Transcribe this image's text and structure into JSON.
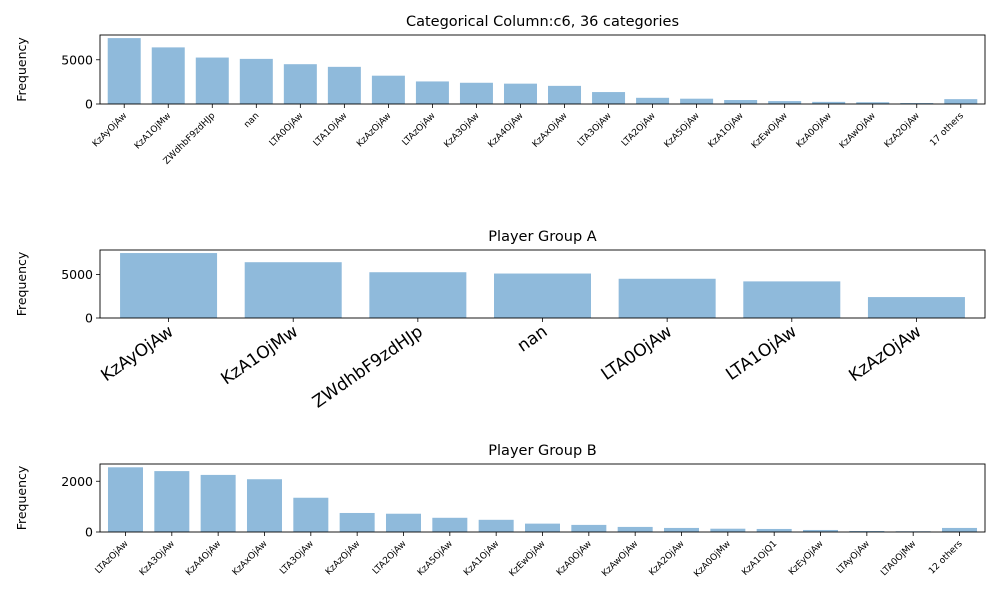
{
  "chart_data": [
    {
      "type": "bar",
      "title": "Categorical Column:c6, 36 categories",
      "xlabel": "",
      "ylabel": "Frequency",
      "ylim": [
        0,
        7800
      ],
      "yticks": [
        0,
        5000
      ],
      "grid": false,
      "bar_color": "#8fbadb",
      "categories": [
        "KzAyOjAw",
        "KzA1OjMw",
        "ZWdhbF9zdHJp",
        "nan",
        "LTA0OjAw",
        "LTA1OjAw",
        "KzAzOjAw",
        "LTAzOjAw",
        "KzA3OjAw",
        "KzA4OjAw",
        "KzAxOjAw",
        "LTA3OjAw",
        "LTA2OjAw",
        "KzA5OjAw",
        "KzA1OjAw",
        "KzEwOjAw",
        "KzA0OjAw",
        "KzAwOjAw",
        "KzA2OjAw",
        "17 others"
      ],
      "values": [
        7450,
        6400,
        5250,
        5100,
        4500,
        4200,
        3200,
        2550,
        2400,
        2300,
        2050,
        1350,
        700,
        600,
        450,
        330,
        240,
        200,
        110,
        550
      ]
    },
    {
      "type": "bar",
      "title": "Player Group A",
      "xlabel": "",
      "ylabel": "Frequency",
      "ylim": [
        0,
        7800
      ],
      "yticks": [
        0,
        5000
      ],
      "grid": false,
      "bar_color": "#8fbadb",
      "categories": [
        "KzAyOjAw",
        "KzA1OjMw",
        "ZWdhbF9zdHJp",
        "nan",
        "LTA0OjAw",
        "LTA1OjAw",
        "KzAzOjAw"
      ],
      "values": [
        7450,
        6400,
        5250,
        5100,
        4500,
        4200,
        2400
      ]
    },
    {
      "type": "bar",
      "title": "Player Group B",
      "xlabel": "",
      "ylabel": "Frequency",
      "ylim": [
        0,
        2680
      ],
      "yticks": [
        0,
        2000
      ],
      "grid": false,
      "bar_color": "#8fbadb",
      "categories": [
        "LTAzOjAw",
        "KzA3OjAw",
        "KzA4OjAw",
        "KzAxOjAw",
        "LTA3OjAw",
        "KzAzOjAw",
        "LTA2OjAw",
        "KzA5OjAw",
        "KzA1OjAw",
        "KzEwOjAw",
        "KzA0OjAw",
        "KzAwOjAw",
        "KzA2OjAw",
        "KzA0OjMw",
        "KzA1OjQ1",
        "KzEyOjAw",
        "LTAyOjAw",
        "LTA0OjMw",
        "12 others"
      ],
      "values": [
        2550,
        2400,
        2250,
        2080,
        1350,
        750,
        720,
        560,
        480,
        330,
        280,
        200,
        160,
        130,
        120,
        80,
        40,
        30,
        160
      ]
    }
  ]
}
